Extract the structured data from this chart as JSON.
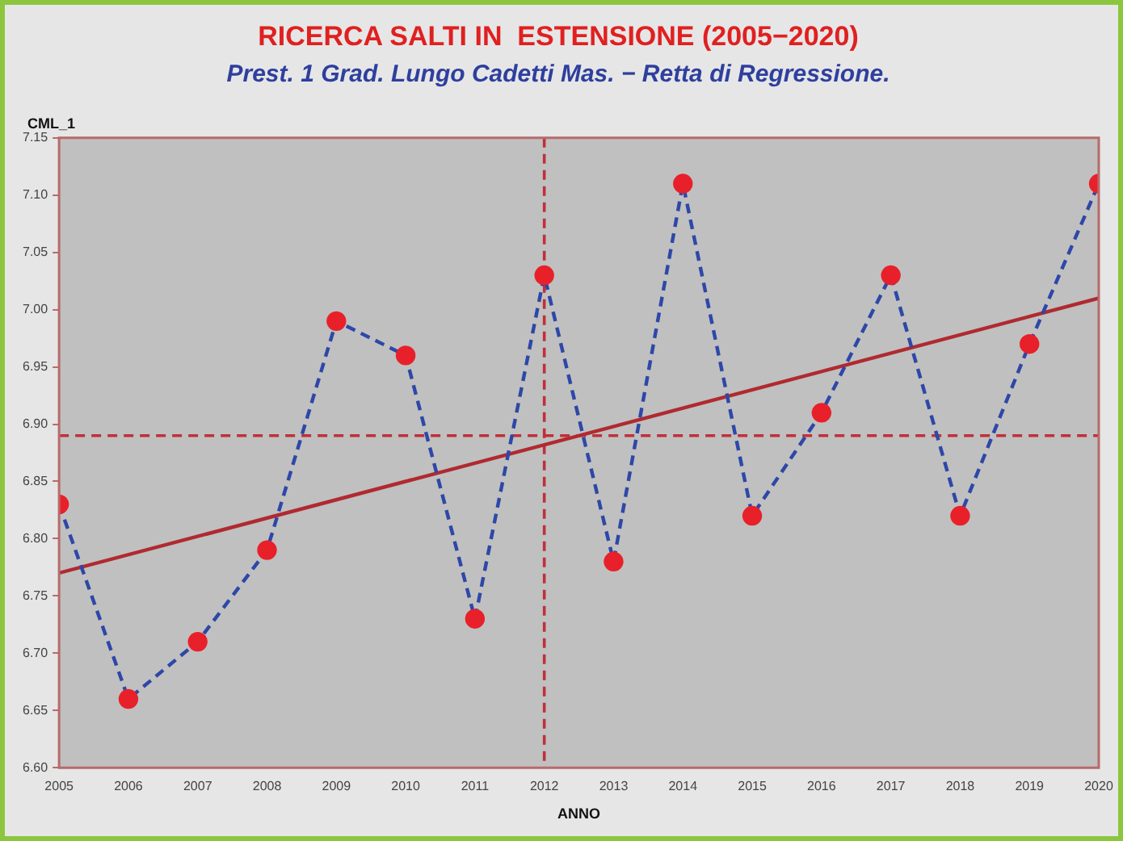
{
  "chart_data": {
    "type": "line",
    "title": "RICERCA SALTI IN  ESTENSIONE (2005−2020)",
    "subtitle": "Prest. 1 Grad. Lungo Cadetti Mas. − Retta di Regressione.",
    "xlabel": "ANNO",
    "ylabel": "CML_1",
    "x": [
      2005,
      2006,
      2007,
      2008,
      2009,
      2010,
      2011,
      2012,
      2013,
      2014,
      2015,
      2016,
      2017,
      2018,
      2019,
      2020
    ],
    "series": [
      {
        "color": "#2e47a8",
        "colors": [
          "#e8202a",
          "#e8202a",
          "#e8202a",
          "#e8202a",
          "#e8202a",
          "#e8202a",
          "#e8202a",
          "#e8202a",
          "#e8202a",
          "#e8202a",
          "#e8202a",
          "#e8202a",
          "#e8202a",
          "#e8202a",
          "#e8202a",
          "#e8202a"
        ],
        "line_style": "dashed",
        "marker": "circle",
        "values": [
          6.83,
          6.66,
          6.71,
          6.79,
          6.99,
          6.96,
          6.73,
          7.03,
          6.78,
          7.11,
          6.82,
          6.91,
          7.03,
          6.82,
          6.97,
          7.11
        ]
      },
      {
        "type": "line",
        "color": "#b02a30",
        "line_style": "solid",
        "marker": "none",
        "x": [
          2005,
          2020
        ],
        "values": [
          6.77,
          7.01
        ]
      }
    ],
    "ref_lines": [
      {
        "axis": "y",
        "value": 6.89,
        "color": "#c0303a",
        "line_style": "dashed"
      },
      {
        "axis": "x",
        "value": 2012,
        "color": "#c0303a",
        "line_style": "dashed"
      }
    ],
    "xlim": [
      2005,
      2020
    ],
    "xticks": [
      2005,
      2006,
      2007,
      2008,
      2009,
      2010,
      2011,
      2012,
      2013,
      2014,
      2015,
      2016,
      2017,
      2018,
      2019,
      2020
    ],
    "ylim": [
      6.6,
      7.15
    ],
    "yticks": [
      {
        "value": 6.6,
        "label": "6.60"
      },
      {
        "value": 6.65,
        "label": "6.65"
      },
      {
        "value": 6.7,
        "label": "6.70"
      },
      {
        "value": 6.75,
        "label": "6.75"
      },
      {
        "value": 6.8,
        "label": "6.80"
      },
      {
        "value": 6.85,
        "label": "6.85"
      },
      {
        "value": 6.9,
        "label": "6.90"
      },
      {
        "value": 6.95,
        "label": "6.95"
      },
      {
        "value": 7.0,
        "label": "7.00"
      },
      {
        "value": 7.05,
        "label": "7.05"
      },
      {
        "value": 7.1,
        "label": "7.10"
      },
      {
        "value": 7.15,
        "label": "7.15"
      }
    ],
    "grid": false,
    "legend": false
  }
}
